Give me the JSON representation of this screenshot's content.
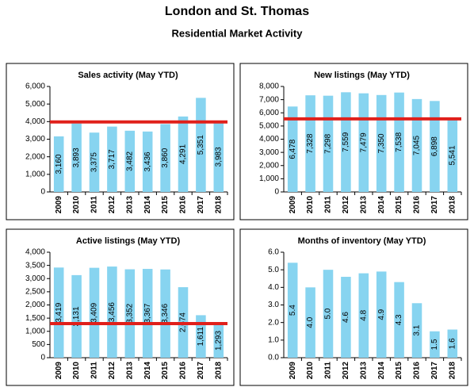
{
  "header": {
    "title": "London and St. Thomas",
    "subtitle": "Residential Market Activity"
  },
  "chart_data": [
    {
      "type": "bar",
      "title": "Sales activity (May YTD)",
      "categories": [
        "2009",
        "2010",
        "2011",
        "2012",
        "2013",
        "2014",
        "2015",
        "2016",
        "2017",
        "2018"
      ],
      "values": [
        3160,
        3893,
        3375,
        3717,
        3482,
        3436,
        3860,
        4291,
        5351,
        3983
      ],
      "value_labels": [
        "3,160",
        "3,893",
        "3,375",
        "3,717",
        "3,482",
        "3,436",
        "3,860",
        "4,291",
        "5,351",
        "3,983"
      ],
      "color": "#87d4f0",
      "ylim": [
        0,
        6000
      ],
      "yticks": [
        0,
        {
          "value": 1000,
          "label": "1,000"
        },
        {
          "value": 2000,
          "label": "2,000"
        },
        {
          "value": 3000,
          "label": "3,000"
        },
        {
          "value": 4000,
          "label": "4,000"
        },
        {
          "value": 5000,
          "label": "5,000"
        },
        {
          "value": 6000,
          "label": "6,000"
        }
      ],
      "reference_line": {
        "value": 3983,
        "color": "#e0201b"
      }
    },
    {
      "type": "bar",
      "title": "New listings (May YTD)",
      "categories": [
        "2009",
        "2010",
        "2011",
        "2012",
        "2013",
        "2014",
        "2015",
        "2016",
        "2017",
        "2018"
      ],
      "values": [
        6478,
        7328,
        7298,
        7559,
        7479,
        7350,
        7538,
        7045,
        6898,
        5541
      ],
      "value_labels": [
        "6,478",
        "7,328",
        "7,298",
        "7,559",
        "7,479",
        "7,350",
        "7,538",
        "7,045",
        "6,898",
        "5,541"
      ],
      "color": "#87d4f0",
      "ylim": [
        0,
        8000
      ],
      "yticks": [
        0,
        {
          "value": 1000,
          "label": "1,000"
        },
        {
          "value": 2000,
          "label": "2,000"
        },
        {
          "value": 3000,
          "label": "3,000"
        },
        {
          "value": 4000,
          "label": "4,000"
        },
        {
          "value": 5000,
          "label": "5,000"
        },
        {
          "value": 6000,
          "label": "6,000"
        },
        {
          "value": 7000,
          "label": "7,000"
        },
        {
          "value": 8000,
          "label": "8,000"
        }
      ],
      "reference_line": {
        "value": 5541,
        "color": "#e0201b"
      }
    },
    {
      "type": "bar",
      "title": "Active listings (May YTD)",
      "categories": [
        "2009",
        "2010",
        "2011",
        "2012",
        "2013",
        "2014",
        "2015",
        "2016",
        "2017",
        "2018"
      ],
      "values": [
        3419,
        3131,
        3409,
        3456,
        3352,
        3367,
        3346,
        2674,
        1611,
        1293
      ],
      "value_labels": [
        "3,419",
        "3,131",
        "3,409",
        "3,456",
        "3,352",
        "3,367",
        "3,346",
        "2,674",
        "1,611",
        "1,293"
      ],
      "color": "#87d4f0",
      "ylim": [
        0,
        4000
      ],
      "yticks": [
        0,
        500,
        {
          "value": 1000,
          "label": "1,000"
        },
        {
          "value": 1500,
          "label": "1,500"
        },
        {
          "value": 2000,
          "label": "2,000"
        },
        {
          "value": 2500,
          "label": "2,500"
        },
        {
          "value": 3000,
          "label": "3,000"
        },
        {
          "value": 3500,
          "label": "3,500"
        },
        {
          "value": 4000,
          "label": "4,000"
        }
      ],
      "reference_line": {
        "value": 1293,
        "color": "#e0201b"
      }
    },
    {
      "type": "bar",
      "title": "Months of inventory (May YTD)",
      "categories": [
        "2009",
        "2010",
        "2011",
        "2012",
        "2013",
        "2014",
        "2015",
        "2016",
        "2017",
        "2018"
      ],
      "values": [
        5.4,
        4,
        5,
        4.6,
        4.8,
        4.9,
        4.3,
        3.1,
        1.5,
        1.6
      ],
      "value_labels": [
        "5.4",
        "4.0",
        "5.0",
        "4.6",
        "4.8",
        "4.9",
        "4.3",
        "3.1",
        "1.5",
        "1.6"
      ],
      "color": "#87d4f0",
      "ylim": [
        0,
        6
      ],
      "yticks": [
        {
          "value": 0,
          "label": "0.0"
        },
        {
          "value": 1,
          "label": "1.0"
        },
        {
          "value": 2,
          "label": "2.0"
        },
        {
          "value": 3,
          "label": "3.0"
        },
        {
          "value": 4,
          "label": "4.0"
        },
        {
          "value": 5,
          "label": "5.0"
        },
        {
          "value": 6,
          "label": "6.0"
        }
      ]
    }
  ]
}
